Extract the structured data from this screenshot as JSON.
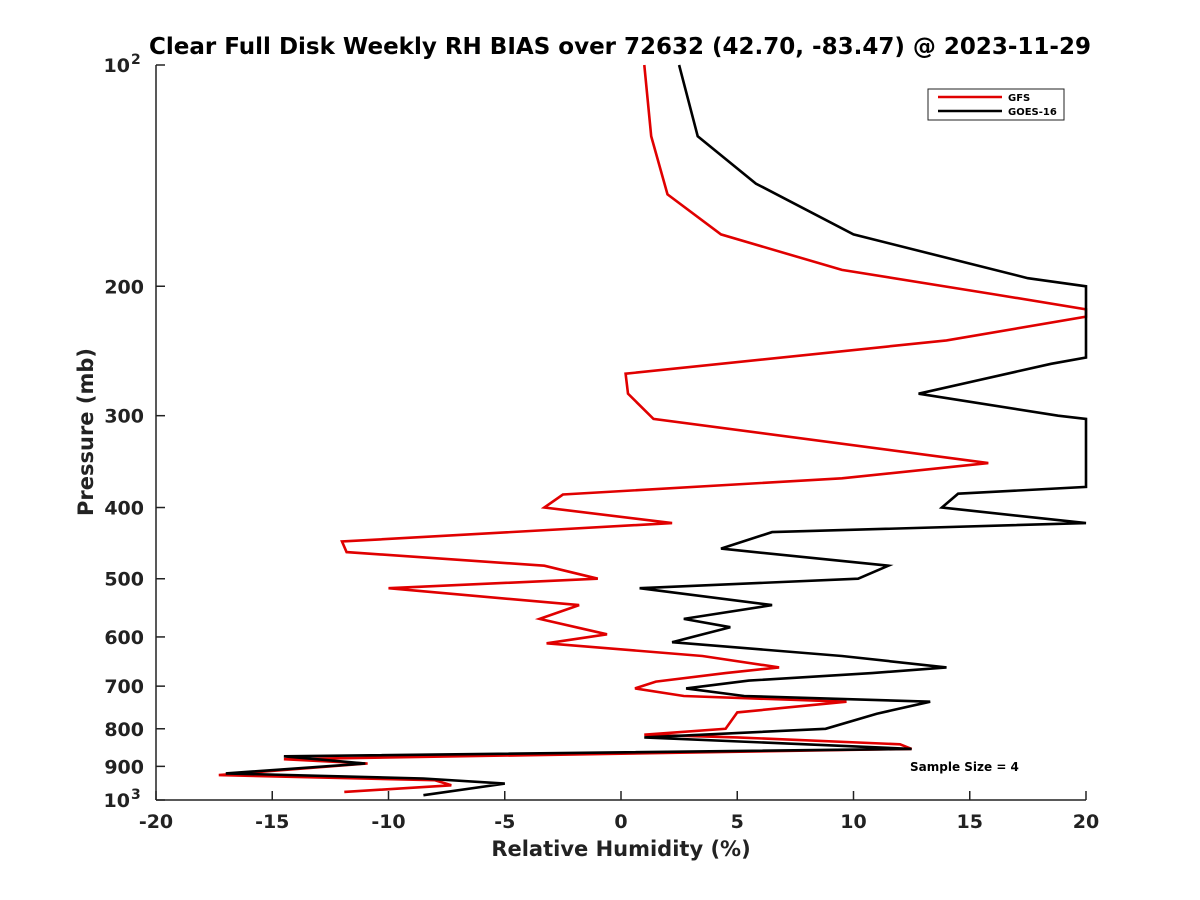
{
  "chart_data": {
    "type": "line",
    "title": "Clear Full Disk Weekly RH BIAS over 72632 (42.70, -83.47) @ 2023-11-29",
    "xlabel": "Relative Humidity (%)",
    "ylabel": "Pressure (mb)",
    "xlim": [
      -20,
      20
    ],
    "ylim": [
      100,
      1000
    ],
    "y_scale": "log",
    "y_reversed": true,
    "x_ticks": [
      "-20",
      "-15",
      "-10",
      "-5",
      "0",
      "5",
      "10",
      "15",
      "20"
    ],
    "y_ticks": [
      {
        "value": 100,
        "label": "10",
        "sup": "2"
      },
      {
        "value": 200,
        "label": "200",
        "sup": ""
      },
      {
        "value": 300,
        "label": "300",
        "sup": ""
      },
      {
        "value": 400,
        "label": "400",
        "sup": ""
      },
      {
        "value": 500,
        "label": "500",
        "sup": ""
      },
      {
        "value": 600,
        "label": "600",
        "sup": ""
      },
      {
        "value": 700,
        "label": "700",
        "sup": ""
      },
      {
        "value": 800,
        "label": "800",
        "sup": ""
      },
      {
        "value": 900,
        "label": "900",
        "sup": ""
      },
      {
        "value": 1000,
        "label": "10",
        "sup": "3"
      }
    ],
    "grid": false,
    "legend_position": "top-right",
    "series": [
      {
        "name": "GFS",
        "color": "#e00000",
        "points": [
          [
            1.0,
            100
          ],
          [
            1.3,
            125
          ],
          [
            2.0,
            150
          ],
          [
            4.3,
            170
          ],
          [
            9.5,
            190
          ],
          [
            16.0,
            205
          ],
          [
            20.0,
            215
          ],
          [
            20.0,
            220
          ],
          [
            14.0,
            237
          ],
          [
            0.2,
            263
          ],
          [
            0.3,
            280
          ],
          [
            1.4,
            303
          ],
          [
            15.8,
            348
          ],
          [
            9.5,
            365
          ],
          [
            -2.5,
            384
          ],
          [
            -3.3,
            400
          ],
          [
            2.2,
            420
          ],
          [
            -12.0,
            445
          ],
          [
            -11.8,
            460
          ],
          [
            -3.3,
            480
          ],
          [
            -1.0,
            500
          ],
          [
            -10.0,
            515
          ],
          [
            -1.8,
            543
          ],
          [
            -3.5,
            567
          ],
          [
            -0.6,
            595
          ],
          [
            -3.2,
            612
          ],
          [
            3.5,
            637
          ],
          [
            6.8,
            660
          ],
          [
            4.5,
            672
          ],
          [
            1.5,
            690
          ],
          [
            0.6,
            705
          ],
          [
            2.7,
            722
          ],
          [
            9.7,
            735
          ],
          [
            5.0,
            760
          ],
          [
            4.5,
            800
          ],
          [
            1.0,
            815
          ],
          [
            5.0,
            822
          ],
          [
            12.0,
            840
          ],
          [
            12.5,
            852
          ],
          [
            -14.5,
            880
          ],
          [
            -10.9,
            892
          ],
          [
            -17.3,
            925
          ],
          [
            -8.0,
            940
          ],
          [
            -7.3,
            955
          ],
          [
            -11.9,
            975
          ]
        ]
      },
      {
        "name": "GOES-16",
        "color": "#000000",
        "points": [
          [
            2.5,
            100
          ],
          [
            3.3,
            125
          ],
          [
            5.8,
            145
          ],
          [
            10.0,
            170
          ],
          [
            17.5,
            195
          ],
          [
            20.0,
            200
          ],
          [
            20.0,
            250
          ],
          [
            18.5,
            255
          ],
          [
            12.8,
            280
          ],
          [
            18.8,
            300
          ],
          [
            20.0,
            303
          ],
          [
            20.0,
            375
          ],
          [
            14.5,
            383
          ],
          [
            13.8,
            400
          ],
          [
            20.0,
            420
          ],
          [
            6.5,
            432
          ],
          [
            4.3,
            455
          ],
          [
            11.5,
            480
          ],
          [
            10.2,
            500
          ],
          [
            0.8,
            515
          ],
          [
            6.5,
            543
          ],
          [
            2.7,
            567
          ],
          [
            4.7,
            582
          ],
          [
            2.2,
            610
          ],
          [
            9.5,
            637
          ],
          [
            14.0,
            660
          ],
          [
            10.8,
            672
          ],
          [
            5.5,
            688
          ],
          [
            2.8,
            705
          ],
          [
            5.3,
            722
          ],
          [
            13.3,
            735
          ],
          [
            11.0,
            763
          ],
          [
            8.8,
            800
          ],
          [
            1.0,
            822
          ],
          [
            12.5,
            852
          ],
          [
            -14.5,
            872
          ],
          [
            -11.0,
            892
          ],
          [
            -17.0,
            920
          ],
          [
            -8.5,
            935
          ],
          [
            -5.0,
            950
          ],
          [
            -8.5,
            985
          ]
        ]
      }
    ],
    "annotations": [
      "Sample Size = 4"
    ]
  }
}
